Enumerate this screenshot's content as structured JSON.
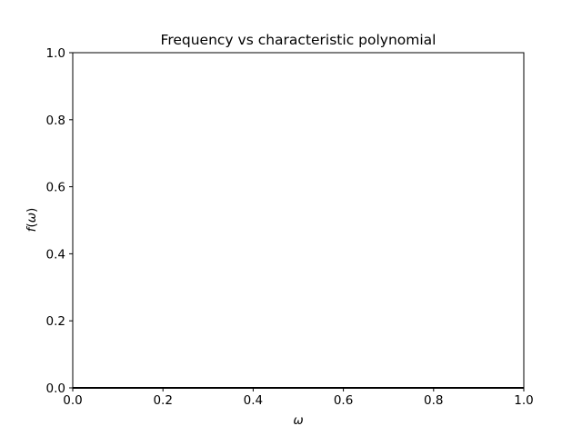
{
  "chart_data": {
    "type": "line",
    "title": "Frequency vs characteristic polynomial",
    "xlabel_var": "ω",
    "ylabel_func": "f",
    "ylabel_var": "ω",
    "xlim": [
      0.0,
      1.0
    ],
    "ylim": [
      0.0,
      1.0
    ],
    "xticks": [
      0.0,
      0.2,
      0.4,
      0.6,
      0.8,
      1.0
    ],
    "yticks": [
      0.0,
      0.2,
      0.4,
      0.6,
      0.8,
      1.0
    ],
    "xtick_labels": [
      "0.0",
      "0.2",
      "0.4",
      "0.6",
      "0.8",
      "1.0"
    ],
    "ytick_labels": [
      "0.0",
      "0.2",
      "0.4",
      "0.6",
      "0.8",
      "1.0"
    ],
    "grid": false,
    "series": [
      {
        "x": [
          0.0,
          1.0
        ],
        "y": [
          0.0,
          0.0
        ],
        "color": "#000000"
      }
    ]
  }
}
